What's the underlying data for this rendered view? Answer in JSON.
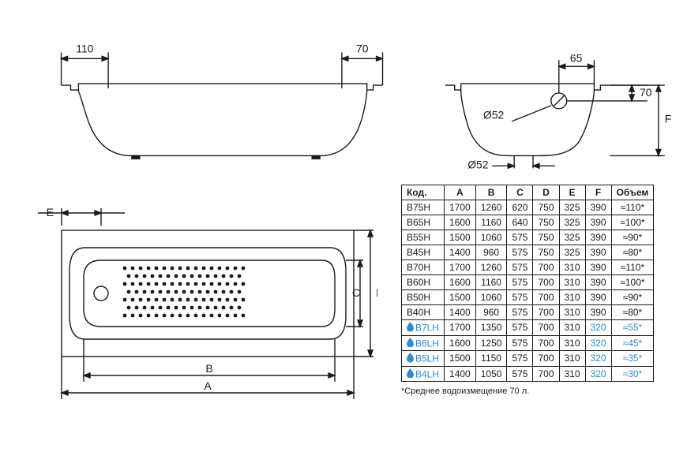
{
  "colors": {
    "line": "#1a1a1a",
    "bg": "#ffffff",
    "accent": "#2a8ed6"
  },
  "stroke_width": 1.4,
  "dims_side": {
    "left_flange": "110",
    "right_flange": "70",
    "drain1": "Ø52",
    "drain2": "Ø52",
    "overflow_offset": "65",
    "rim_to_overflow": "70",
    "height_label": "F"
  },
  "dims_plan": {
    "A": "A",
    "B": "B",
    "C": "C",
    "D": "D",
    "E": "E"
  },
  "table": {
    "headers": [
      "Код.",
      "A",
      "B",
      "C",
      "D",
      "E",
      "F",
      "Объем"
    ],
    "rows": [
      {
        "code": "B75H",
        "A": "1700",
        "B": "1260",
        "C": "620",
        "D": "750",
        "E": "325",
        "F": "390",
        "V": "≈110*",
        "hl": false
      },
      {
        "code": "B65H",
        "A": "1600",
        "B": "1160",
        "C": "640",
        "D": "750",
        "E": "325",
        "F": "390",
        "V": "≈100*",
        "hl": false
      },
      {
        "code": "B55H",
        "A": "1500",
        "B": "1060",
        "C": "575",
        "D": "750",
        "E": "325",
        "F": "390",
        "V": "≈90*",
        "hl": false
      },
      {
        "code": "B45H",
        "A": "1400",
        "B": "960",
        "C": "575",
        "D": "750",
        "E": "325",
        "F": "390",
        "V": "≈80*",
        "hl": false
      },
      {
        "code": "B70H",
        "A": "1700",
        "B": "1260",
        "C": "575",
        "D": "700",
        "E": "310",
        "F": "390",
        "V": "≈110*",
        "hl": false
      },
      {
        "code": "B60H",
        "A": "1600",
        "B": "1160",
        "C": "575",
        "D": "700",
        "E": "310",
        "F": "390",
        "V": "≈100*",
        "hl": false
      },
      {
        "code": "B50H",
        "A": "1500",
        "B": "1060",
        "C": "575",
        "D": "700",
        "E": "310",
        "F": "390",
        "V": "≈90*",
        "hl": false
      },
      {
        "code": "B40H",
        "A": "1400",
        "B": "960",
        "C": "575",
        "D": "700",
        "E": "310",
        "F": "390",
        "V": "≈80*",
        "hl": false
      },
      {
        "code": "B7LH",
        "A": "1700",
        "B": "1350",
        "C": "575",
        "D": "700",
        "E": "310",
        "F": "320",
        "V": "≈55*",
        "hl": true
      },
      {
        "code": "B6LH",
        "A": "1600",
        "B": "1250",
        "C": "575",
        "D": "700",
        "E": "310",
        "F": "320",
        "V": "≈45*",
        "hl": true
      },
      {
        "code": "B5LH",
        "A": "1500",
        "B": "1150",
        "C": "575",
        "D": "700",
        "E": "310",
        "F": "320",
        "V": "≈35*",
        "hl": true
      },
      {
        "code": "B4LH",
        "A": "1400",
        "B": "1050",
        "C": "575",
        "D": "700",
        "E": "310",
        "F": "320",
        "V": "≈30*",
        "hl": true
      }
    ],
    "footnote": "*Среднее водоизмещение 70 л."
  }
}
